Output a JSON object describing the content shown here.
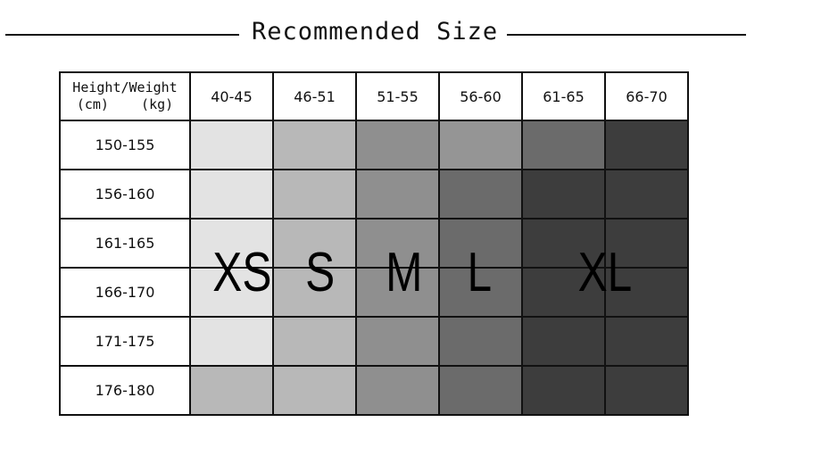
{
  "title": "Recommended Size",
  "table": {
    "corner_line1": "Height/Weight",
    "corner_line2": "(cm)    (kg)",
    "weight_headers": [
      "40-45",
      "46-51",
      "51-55",
      "56-60",
      "61-65",
      "66-70"
    ],
    "rows": [
      {
        "height": "150-155",
        "shades": [
          "#e3e3e3",
          "#b8b8b8",
          "#8f8f8f",
          "#959595",
          "#6b6b6b",
          "#3d3d3d"
        ]
      },
      {
        "height": "156-160",
        "shades": [
          "#e3e3e3",
          "#b8b8b8",
          "#8f8f8f",
          "#6b6b6b",
          "#3d3d3d",
          "#3d3d3d"
        ]
      },
      {
        "height": "161-165",
        "shades": [
          "#e3e3e3",
          "#b8b8b8",
          "#8f8f8f",
          "#6b6b6b",
          "#3d3d3d",
          "#3d3d3d"
        ]
      },
      {
        "height": "166-170",
        "shades": [
          "#e3e3e3",
          "#b8b8b8",
          "#8f8f8f",
          "#6b6b6b",
          "#3d3d3d",
          "#3d3d3d"
        ]
      },
      {
        "height": "171-175",
        "shades": [
          "#e3e3e3",
          "#b8b8b8",
          "#8f8f8f",
          "#6b6b6b",
          "#3d3d3d",
          "#3d3d3d"
        ]
      },
      {
        "height": "176-180",
        "shades": [
          "#b8b8b8",
          "#b8b8b8",
          "#8f8f8f",
          "#6b6b6b",
          "#3d3d3d",
          "#3d3d3d"
        ]
      }
    ]
  },
  "sizes": [
    "XS",
    "S",
    "M",
    "L",
    "XL"
  ]
}
